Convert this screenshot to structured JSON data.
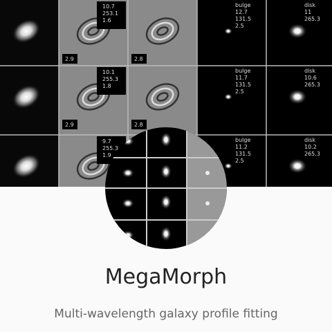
{
  "card": {
    "title": "MegaMorph",
    "subtitle": "Multi-wavelength galaxy profile fitting",
    "banner": {
      "rows": [
        {
          "residual": [
            "10.7",
            "253.1",
            "1.6"
          ],
          "residual_note": "2.9",
          "residual2_note": "2.8",
          "bulge": [
            "bulge",
            "12.7",
            "131.5",
            "2.5"
          ],
          "disk": [
            "disk",
            "11",
            "265.3"
          ]
        },
        {
          "residual": [
            "10.1",
            "255.3",
            "1.8"
          ],
          "residual_note": "2.9",
          "residual2_note": "2.8",
          "bulge": [
            "bulge",
            "11.7",
            "131.5",
            "2.5"
          ],
          "disk": [
            "disk",
            "10.6",
            "265.3"
          ]
        },
        {
          "residual": [
            "9.7",
            "255.3",
            "1.9"
          ],
          "bulge": [
            "bulge",
            "11.2",
            "131.5",
            "2.5"
          ],
          "disk": [
            "disk",
            "10.2",
            "265.3"
          ]
        }
      ]
    }
  }
}
